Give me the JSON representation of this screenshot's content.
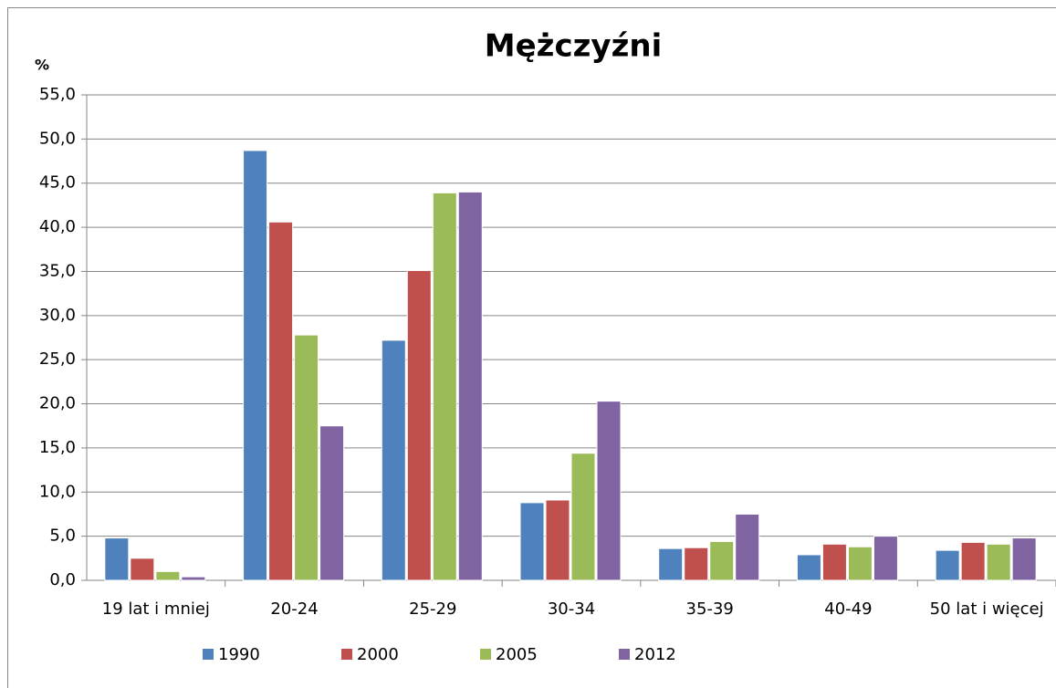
{
  "chart_data": {
    "type": "bar",
    "title": "Mężczyźni",
    "y_label": "%",
    "categories": [
      "19 lat i mniej",
      "20-24",
      "25-29",
      "30-34",
      "35-39",
      "40-49",
      "50 lat i więcej"
    ],
    "series": [
      {
        "name": "1990",
        "color": "#4f81bd",
        "values": [
          4.8,
          48.7,
          27.2,
          8.8,
          3.6,
          2.9,
          3.4
        ]
      },
      {
        "name": "2000",
        "color": "#c0504d",
        "values": [
          2.5,
          40.6,
          35.1,
          9.1,
          3.7,
          4.1,
          4.3
        ]
      },
      {
        "name": "2005",
        "color": "#9bbb59",
        "values": [
          1.0,
          27.8,
          43.9,
          14.4,
          4.4,
          3.8,
          4.1
        ]
      },
      {
        "name": "2012",
        "color": "#8064a2",
        "values": [
          0.4,
          17.5,
          44.0,
          20.3,
          7.5,
          5.0,
          4.8
        ]
      }
    ],
    "ylim": [
      0,
      55
    ],
    "yticks": [
      {
        "value": 0,
        "label": "0,0"
      },
      {
        "value": 5,
        "label": "5,0"
      },
      {
        "value": 10,
        "label": "10,0"
      },
      {
        "value": 15,
        "label": "15,0"
      },
      {
        "value": 20,
        "label": "20,0"
      },
      {
        "value": 25,
        "label": "25,0"
      },
      {
        "value": 30,
        "label": "30,0"
      },
      {
        "value": 35,
        "label": "35,0"
      },
      {
        "value": 40,
        "label": "40,0"
      },
      {
        "value": 45,
        "label": "45,0"
      },
      {
        "value": 50,
        "label": "50,0"
      },
      {
        "value": 55,
        "label": "55,0"
      }
    ],
    "grid": true,
    "legend": "bottom"
  }
}
